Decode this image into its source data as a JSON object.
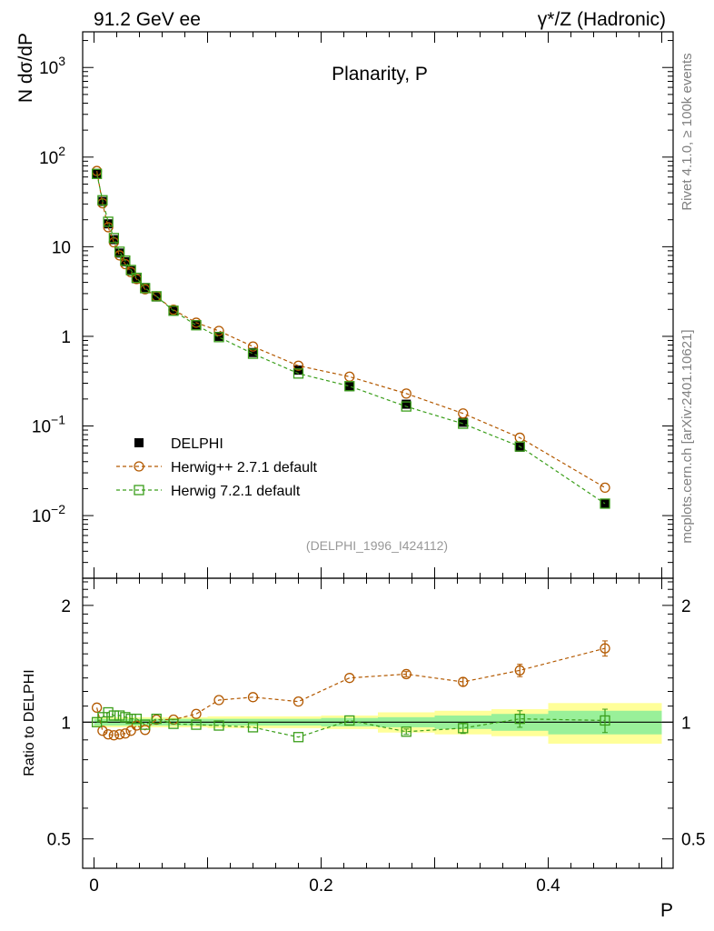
{
  "header": {
    "left_label": "91.2 GeV ee",
    "right_label": "γ*/Z (Hadronic)",
    "side_label_top": "Rivet 4.1.0, ≥ 100k events",
    "side_label_bottom": "mcplots.cern.ch [arXiv:2401.10621]"
  },
  "colors": {
    "data": "#000000",
    "herwigpp": "#b35900",
    "herwig7": "#3a9e1a",
    "band_inner": "#99f099",
    "band_outer": "#ffff99"
  },
  "chart_data": [
    {
      "type": "line",
      "name": "main-panel",
      "title": "Planarity, P",
      "ylabel": "N  dσ/dP",
      "yscale": "log",
      "xlim": [
        -0.01,
        0.51
      ],
      "ylim": [
        0.002,
        2500
      ],
      "yticks": [
        {
          "value": 0.01,
          "label": "10",
          "exp": "−2"
        },
        {
          "value": 0.1,
          "label": "10",
          "exp": "−1"
        },
        {
          "value": 1,
          "label": "1",
          "exp": ""
        },
        {
          "value": 10,
          "label": "10",
          "exp": ""
        },
        {
          "value": 100,
          "label": "10",
          "exp": "2"
        },
        {
          "value": 1000,
          "label": "10",
          "exp": "3"
        }
      ],
      "annotation": "(DELPHI_1996_I424112)",
      "legend": {
        "position": "lower-left",
        "entries": [
          "DELPHI",
          "Herwig++ 2.7.1 default",
          "Herwig 7.2.1 default"
        ]
      },
      "x": [
        0.0025,
        0.0075,
        0.0125,
        0.0175,
        0.0225,
        0.0275,
        0.0325,
        0.0375,
        0.045,
        0.055,
        0.07,
        0.09,
        0.11,
        0.14,
        0.18,
        0.225,
        0.275,
        0.325,
        0.375,
        0.45
      ],
      "series": [
        {
          "name": "DELPHI",
          "marker": "filled-square",
          "values": [
            65,
            32,
            18,
            12,
            8.5,
            6.8,
            5.4,
            4.4,
            3.5,
            2.75,
            1.95,
            1.35,
            1.0,
            0.66,
            0.42,
            0.275,
            0.175,
            0.11,
            0.058,
            0.0135
          ]
        },
        {
          "name": "Herwig++ 2.7.1 default",
          "marker": "open-circle",
          "values": [
            70,
            30.5,
            16.5,
            11.2,
            8.0,
            6.4,
            5.2,
            4.35,
            3.35,
            2.8,
            1.98,
            1.42,
            1.15,
            0.77,
            0.47,
            0.355,
            0.23,
            0.138,
            0.074,
            0.0205
          ]
        },
        {
          "name": "Herwig 7.2.1 default",
          "marker": "open-square",
          "values": [
            65,
            33,
            19,
            12.5,
            8.8,
            7.0,
            5.5,
            4.5,
            3.45,
            2.8,
            1.93,
            1.33,
            0.98,
            0.64,
            0.385,
            0.278,
            0.165,
            0.106,
            0.059,
            0.0136
          ]
        }
      ]
    },
    {
      "type": "line",
      "name": "ratio-panel",
      "ylabel": "Ratio to DELPHI",
      "xlabel": "P",
      "yscale": "log",
      "xlim": [
        -0.01,
        0.51
      ],
      "ylim": [
        0.42,
        2.35
      ],
      "yticks": [
        {
          "value": 0.5,
          "label": "0.5"
        },
        {
          "value": 1,
          "label": "1"
        },
        {
          "value": 2,
          "label": "2"
        }
      ],
      "xticks": [
        {
          "value": 0,
          "label": "0"
        },
        {
          "value": 0.2,
          "label": "0.2"
        },
        {
          "value": 0.4,
          "label": "0.4"
        }
      ],
      "reference": 1,
      "x": [
        0.0025,
        0.0075,
        0.0125,
        0.0175,
        0.0225,
        0.0275,
        0.0325,
        0.0375,
        0.045,
        0.055,
        0.07,
        0.09,
        0.11,
        0.14,
        0.18,
        0.225,
        0.275,
        0.325,
        0.375,
        0.45
      ],
      "uncertainty_bands": [
        {
          "x_edges": [
            0.0,
            0.1,
            0.2,
            0.25,
            0.3,
            0.35,
            0.4,
            0.5
          ],
          "inner": [
            0.02,
            0.02,
            0.025,
            0.03,
            0.04,
            0.05,
            0.07
          ],
          "outer": [
            0.03,
            0.035,
            0.04,
            0.06,
            0.07,
            0.08,
            0.12
          ]
        }
      ],
      "series": [
        {
          "name": "Herwig++ 2.7.1 default",
          "marker": "open-circle",
          "values": [
            1.09,
            0.95,
            0.93,
            0.925,
            0.93,
            0.935,
            0.95,
            0.98,
            0.955,
            1.015,
            1.015,
            1.05,
            1.14,
            1.16,
            1.13,
            1.3,
            1.33,
            1.27,
            1.36,
            1.55
          ],
          "errors": [
            0,
            0,
            0,
            0,
            0,
            0,
            0,
            0,
            0,
            0,
            0,
            0,
            0,
            0,
            0,
            0,
            0.02,
            0.03,
            0.05,
            0.07
          ]
        },
        {
          "name": "Herwig 7.2.1 default",
          "marker": "open-square",
          "values": [
            1.0,
            1.03,
            1.06,
            1.04,
            1.04,
            1.03,
            1.02,
            1.02,
            0.985,
            1.02,
            0.99,
            0.985,
            0.98,
            0.97,
            0.915,
            1.01,
            0.945,
            0.965,
            1.02,
            1.01
          ],
          "errors": [
            0,
            0,
            0,
            0,
            0,
            0,
            0,
            0,
            0,
            0,
            0,
            0,
            0,
            0,
            0,
            0,
            0.015,
            0.03,
            0.05,
            0.07
          ]
        }
      ]
    }
  ]
}
